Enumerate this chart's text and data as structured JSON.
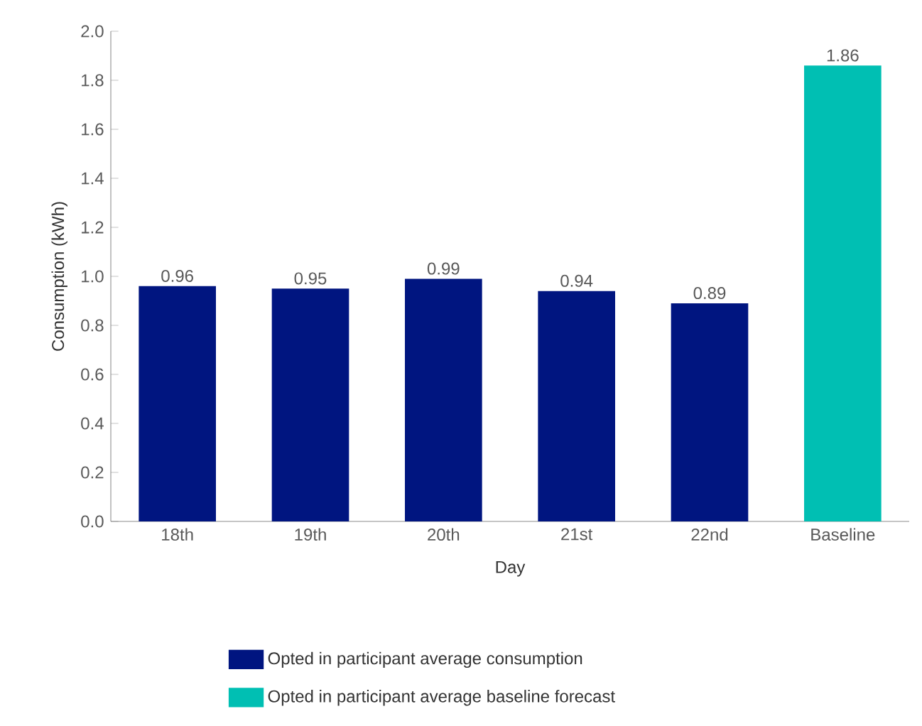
{
  "chart_data": {
    "type": "bar",
    "xlabel": "Day",
    "ylabel": "Consumption (kWh)",
    "categories": [
      "18th",
      "19th",
      "20th",
      "21st",
      "22nd",
      "Baseline"
    ],
    "series": [
      {
        "name": "Opted in participant average consumption",
        "color": "#001580",
        "values": [
          0.96,
          0.95,
          0.99,
          0.94,
          0.89,
          null
        ]
      },
      {
        "name": "Opted in participant average baseline forecast",
        "color": "#00bfb3",
        "values": [
          null,
          null,
          null,
          null,
          null,
          1.86
        ]
      }
    ],
    "ylim": [
      0,
      2
    ],
    "yticks": [
      {
        "value": 0,
        "label": "0.0"
      },
      {
        "value": 0.2,
        "label": "0.2"
      },
      {
        "value": 0.4,
        "label": "0.4"
      },
      {
        "value": 0.6,
        "label": "0.6"
      },
      {
        "value": 0.8,
        "label": "0.8"
      },
      {
        "value": 1,
        "label": "1.0"
      },
      {
        "value": 1.2,
        "label": "1.2"
      },
      {
        "value": 1.4,
        "label": "1.4"
      },
      {
        "value": 1.6,
        "label": "1.6"
      },
      {
        "value": 1.8,
        "label": "1.8"
      },
      {
        "value": 2,
        "label": "2.0"
      }
    ],
    "data_labels": true,
    "grid": false,
    "legend": "bottom"
  }
}
